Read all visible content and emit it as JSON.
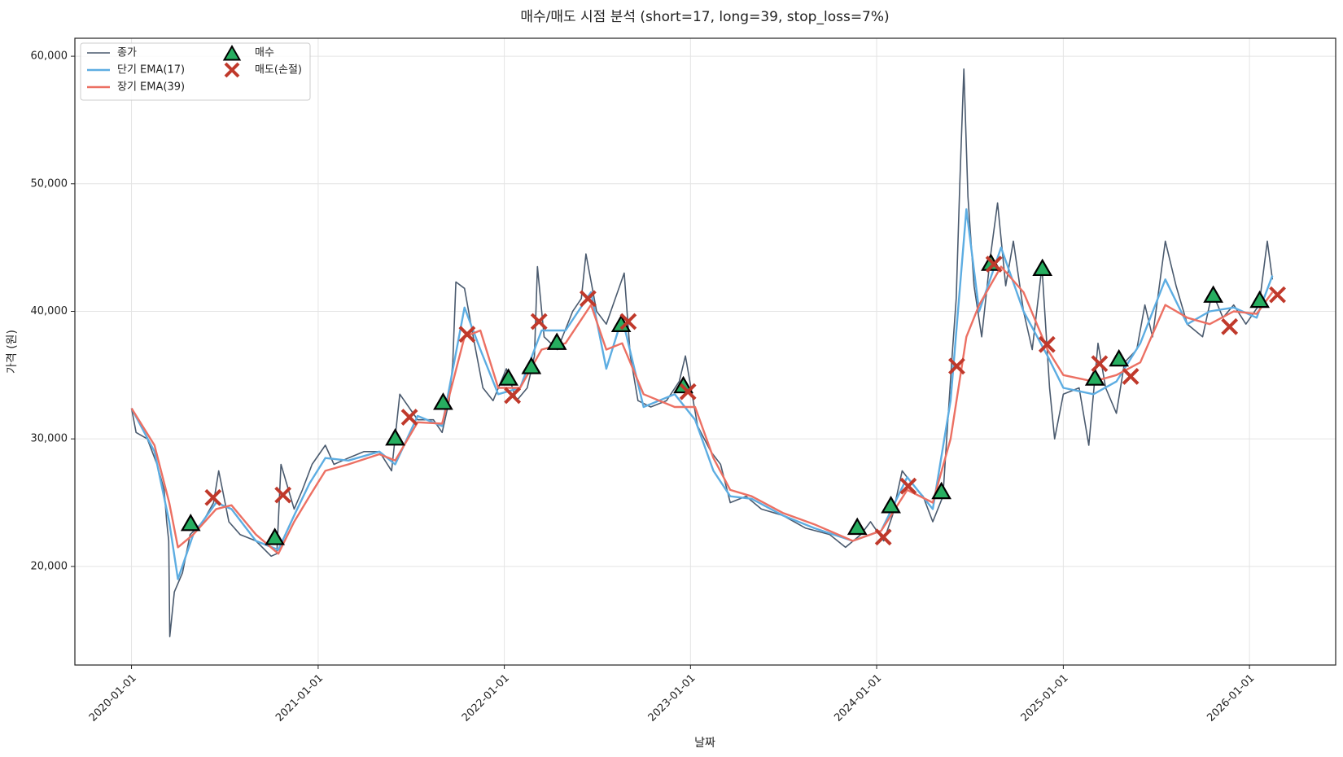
{
  "chart_data": {
    "type": "line",
    "title": "매수/매도 시점 분석 (short=17, long=39, stop_loss=7%)",
    "xlabel": "날짜",
    "ylabel": "가격 (원)",
    "xlim": [
      "2019-09-12",
      "2026-06-19"
    ],
    "xticks": [
      "2020-01-01",
      "2021-01-01",
      "2022-01-01",
      "2023-01-01",
      "2024-01-01",
      "2025-01-01",
      "2026-01-01"
    ],
    "ylim": [
      12270,
      61410
    ],
    "yticks": [
      {
        "value": 20000,
        "label": "20,000"
      },
      {
        "value": 30000,
        "label": "30,000"
      },
      {
        "value": 40000,
        "label": "40,000"
      },
      {
        "value": 50000,
        "label": "50,000"
      },
      {
        "value": 60000,
        "label": "60,000"
      }
    ],
    "grid": true,
    "legend": "upper left",
    "series": [
      {
        "name": "종가",
        "type": "line",
        "color": "#4a5a6e",
        "width": 1.6,
        "x": [
          "2020-01-01",
          "2020-01-10",
          "2020-02-01",
          "2020-02-20",
          "2020-03-05",
          "2020-03-10",
          "2020-03-14",
          "2020-03-16",
          "2020-03-25",
          "2020-04-10",
          "2020-04-25",
          "2020-05-20",
          "2020-06-10",
          "2020-06-20",
          "2020-07-10",
          "2020-08-01",
          "2020-09-01",
          "2020-10-01",
          "2020-10-12",
          "2020-10-20",
          "2020-11-15",
          "2020-12-01",
          "2020-12-20",
          "2021-01-15",
          "2021-02-01",
          "2021-03-01",
          "2021-04-01",
          "2021-05-01",
          "2021-05-25",
          "2021-06-10",
          "2021-07-15",
          "2021-08-15",
          "2021-09-01",
          "2021-09-15",
          "2021-09-22",
          "2021-09-28",
          "2021-10-15",
          "2021-11-01",
          "2021-11-20",
          "2021-12-10",
          "2022-01-05",
          "2022-01-25",
          "2022-02-15",
          "2022-03-01",
          "2022-03-07",
          "2022-03-20",
          "2022-04-15",
          "2022-05-15",
          "2022-06-01",
          "2022-06-10",
          "2022-07-01",
          "2022-07-20",
          "2022-08-24",
          "2022-09-05",
          "2022-09-20",
          "2022-10-15",
          "2022-11-15",
          "2022-12-10",
          "2022-12-22",
          "2023-01-15",
          "2023-02-10",
          "2023-03-01",
          "2023-03-20",
          "2023-04-20",
          "2023-05-20",
          "2023-07-01",
          "2023-08-15",
          "2023-10-01",
          "2023-11-01",
          "2023-12-01",
          "2023-12-20",
          "2024-01-15",
          "2024-02-01",
          "2024-02-20",
          "2024-03-10",
          "2024-04-01",
          "2024-04-20",
          "2024-05-10",
          "2024-05-27",
          "2024-06-05",
          "2024-06-12",
          "2024-06-20",
          "2024-06-28",
          "2024-07-10",
          "2024-07-25",
          "2024-08-10",
          "2024-08-25",
          "2024-09-10",
          "2024-09-25",
          "2024-10-15",
          "2024-11-01",
          "2024-11-20",
          "2024-12-05",
          "2024-12-15",
          "2025-01-01",
          "2025-02-01",
          "2025-02-20",
          "2025-03-10",
          "2025-03-25",
          "2025-04-15",
          "2025-05-01",
          "2025-05-25",
          "2025-06-10",
          "2025-06-25",
          "2025-07-20",
          "2025-08-10",
          "2025-09-01",
          "2025-10-01",
          "2025-10-20",
          "2025-11-10",
          "2025-12-01",
          "2025-12-25",
          "2026-01-20",
          "2026-02-05",
          "2026-02-15"
        ],
        "values": [
          32400,
          30500,
          30000,
          28000,
          26000,
          23500,
          22000,
          14500,
          18000,
          19500,
          22500,
          23500,
          25000,
          27500,
          23500,
          22500,
          22000,
          20800,
          21000,
          28000,
          24500,
          26000,
          28000,
          29500,
          28000,
          28500,
          29000,
          29000,
          27500,
          33500,
          31500,
          31500,
          30500,
          33000,
          36000,
          42300,
          41800,
          38000,
          34000,
          33000,
          35500,
          33000,
          34000,
          36500,
          43500,
          38000,
          37000,
          40000,
          41000,
          44500,
          40000,
          39000,
          43000,
          36500,
          33000,
          32500,
          33000,
          34500,
          36500,
          31000,
          29000,
          28000,
          25000,
          25500,
          24500,
          24000,
          23000,
          22500,
          21500,
          22500,
          23500,
          22000,
          24000,
          27500,
          26500,
          25500,
          23500,
          25500,
          36000,
          41000,
          50000,
          59000,
          49000,
          42000,
          38000,
          44000,
          48500,
          42000,
          45500,
          40000,
          37000,
          43500,
          34000,
          30000,
          33500,
          34000,
          29500,
          37500,
          34000,
          32000,
          36000,
          37000,
          40500,
          38000,
          45500,
          42000,
          39000,
          38000,
          41500,
          39500,
          40500,
          39000,
          40500,
          45500,
          42500
        ]
      },
      {
        "name": "단기 EMA(17)",
        "type": "line",
        "color": "#5dade2",
        "width": 2.4,
        "x": [
          "2020-01-01",
          "2020-02-15",
          "2020-03-15",
          "2020-04-01",
          "2020-05-01",
          "2020-06-15",
          "2020-07-15",
          "2020-09-01",
          "2020-10-15",
          "2020-11-15",
          "2020-12-15",
          "2021-01-15",
          "2021-03-01",
          "2021-05-01",
          "2021-06-01",
          "2021-07-15",
          "2021-09-01",
          "2021-10-15",
          "2021-11-15",
          "2021-12-20",
          "2022-02-01",
          "2022-03-15",
          "2022-05-01",
          "2022-06-20",
          "2022-07-20",
          "2022-08-20",
          "2022-10-01",
          "2022-12-01",
          "2023-01-10",
          "2023-02-15",
          "2023-03-20",
          "2023-05-01",
          "2023-07-01",
          "2023-09-01",
          "2023-11-15",
          "2024-01-10",
          "2024-03-01",
          "2024-04-20",
          "2024-05-25",
          "2024-06-25",
          "2024-07-20",
          "2024-09-01",
          "2024-10-15",
          "2024-12-01",
          "2025-01-01",
          "2025-03-01",
          "2025-04-15",
          "2025-06-01",
          "2025-07-20",
          "2025-09-01",
          "2025-10-15",
          "2025-12-01",
          "2026-01-15",
          "2026-02-15"
        ],
        "values": [
          32400,
          29000,
          23500,
          19000,
          22500,
          25000,
          24500,
          22000,
          21300,
          24000,
          26500,
          28500,
          28300,
          29000,
          28000,
          31800,
          31000,
          40300,
          37000,
          33500,
          34000,
          38500,
          38500,
          41500,
          35500,
          39500,
          32500,
          33500,
          31500,
          27500,
          25500,
          25300,
          24000,
          23000,
          22000,
          22800,
          27000,
          24500,
          33000,
          48000,
          40000,
          45000,
          40000,
          36500,
          34000,
          33500,
          34500,
          37500,
          42500,
          39000,
          40000,
          40300,
          39500,
          42800
        ]
      },
      {
        "name": "장기 EMA(39)",
        "type": "line",
        "color": "#ec7063",
        "width": 2.4,
        "x": [
          "2020-01-01",
          "2020-02-15",
          "2020-03-15",
          "2020-04-01",
          "2020-05-01",
          "2020-06-15",
          "2020-07-15",
          "2020-09-01",
          "2020-10-15",
          "2020-11-15",
          "2020-12-15",
          "2021-01-15",
          "2021-03-01",
          "2021-05-01",
          "2021-06-01",
          "2021-07-15",
          "2021-09-01",
          "2021-10-15",
          "2021-11-15",
          "2021-12-20",
          "2022-02-01",
          "2022-03-15",
          "2022-05-01",
          "2022-06-20",
          "2022-07-20",
          "2022-08-20",
          "2022-10-01",
          "2022-12-01",
          "2023-01-10",
          "2023-02-15",
          "2023-03-20",
          "2023-05-01",
          "2023-07-01",
          "2023-09-01",
          "2023-11-15",
          "2024-01-10",
          "2024-03-01",
          "2024-04-20",
          "2024-05-25",
          "2024-06-25",
          "2024-07-20",
          "2024-09-01",
          "2024-10-15",
          "2024-12-01",
          "2025-01-01",
          "2025-03-01",
          "2025-04-15",
          "2025-06-01",
          "2025-07-20",
          "2025-09-01",
          "2025-10-15",
          "2025-12-01",
          "2026-01-15",
          "2026-02-15"
        ],
        "values": [
          32400,
          29500,
          25000,
          21500,
          22500,
          24500,
          24800,
          22500,
          21000,
          23500,
          25500,
          27500,
          28000,
          28800,
          28300,
          31300,
          31200,
          38000,
          38500,
          34000,
          34000,
          37000,
          37500,
          40500,
          37000,
          37500,
          33500,
          32500,
          32500,
          28500,
          26000,
          25500,
          24200,
          23300,
          22000,
          22800,
          26000,
          25000,
          30000,
          38000,
          40500,
          43500,
          41500,
          37000,
          35000,
          34500,
          35000,
          36000,
          40500,
          39500,
          39000,
          40000,
          39800,
          41500
        ]
      },
      {
        "name": "매수",
        "type": "triangle",
        "color": "#27ae60",
        "x": [
          "2020-04-26",
          "2020-10-08",
          "2021-06-01",
          "2021-09-03",
          "2022-01-09",
          "2022-02-23",
          "2022-04-14",
          "2022-08-18",
          "2022-12-18",
          "2023-11-24",
          "2024-01-29",
          "2024-05-07",
          "2024-08-12",
          "2024-11-21",
          "2025-03-04",
          "2025-04-20",
          "2025-10-22",
          "2026-01-21"
        ],
        "values": [
          23300,
          22200,
          30000,
          32800,
          34700,
          35600,
          37500,
          38900,
          34100,
          23000,
          24700,
          25800,
          43700,
          43300,
          34700,
          36200,
          41200,
          40800
        ]
      },
      {
        "name": "매도(손절)",
        "type": "x",
        "color": "#c0392b",
        "x": [
          "2020-06-09",
          "2020-10-24",
          "2021-06-29",
          "2021-10-20",
          "2022-01-17",
          "2022-03-10",
          "2022-06-14",
          "2022-09-01",
          "2022-12-27",
          "2024-01-14",
          "2024-03-03",
          "2024-06-06",
          "2024-08-18",
          "2024-11-30",
          "2025-03-13",
          "2025-05-13",
          "2025-11-23",
          "2026-02-25"
        ],
        "values": [
          25400,
          25600,
          31700,
          38200,
          33400,
          39200,
          41000,
          39200,
          33700,
          22300,
          26300,
          35700,
          43700,
          37400,
          35900,
          34900,
          38800,
          41300
        ]
      }
    ]
  }
}
